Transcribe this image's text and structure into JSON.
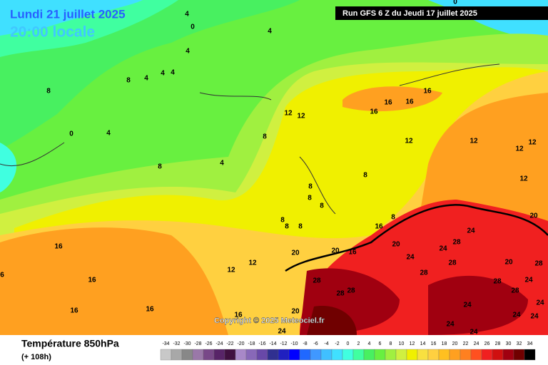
{
  "header": {
    "date": "Lundi 21 juillet 2025",
    "time": "20:00 locale",
    "run": "Run GFS 6 Z du Jeudi 17 juillet 2025"
  },
  "map": {
    "copyright": "Copyright © 2025 Meteociel.fr",
    "contour_labels": [
      4,
      0,
      0,
      4,
      4,
      8,
      4,
      4,
      4,
      8,
      0,
      4,
      12,
      12,
      16,
      16,
      16,
      16,
      8,
      12,
      12,
      12,
      12,
      8,
      4,
      8,
      8,
      12,
      8,
      8,
      20,
      8,
      8,
      8,
      16,
      8,
      24,
      16,
      20,
      20,
      16,
      20,
      28,
      24,
      24,
      20,
      28,
      16,
      12,
      12,
      28,
      28,
      28,
      24,
      28,
      28,
      28,
      28,
      24,
      16,
      16,
      24,
      16,
      20,
      24,
      24,
      24,
      24,
      24,
      6
    ]
  },
  "footer": {
    "title": "Température 850hPa",
    "lead": "(+ 108h)",
    "scale": {
      "labels": [
        -34,
        -32,
        -30,
        -28,
        -26,
        -24,
        -22,
        -20,
        -18,
        -16,
        -14,
        -12,
        -10,
        -8,
        -6,
        -4,
        -2,
        0,
        2,
        4,
        6,
        8,
        10,
        12,
        14,
        16,
        18,
        20,
        22,
        24,
        26,
        28,
        30,
        32,
        34
      ],
      "colors": [
        "#c8c8c8",
        "#a8a8a8",
        "#888888",
        "#9a78a8",
        "#784888",
        "#582468",
        "#401040",
        "#a888c8",
        "#8868b8",
        "#6848a8",
        "#303090",
        "#2020c0",
        "#0000ff",
        "#2068ff",
        "#4098ff",
        "#40c0ff",
        "#40e0ff",
        "#40ffe0",
        "#40ffa0",
        "#48f060",
        "#68f040",
        "#a0f040",
        "#d0f040",
        "#f0f000",
        "#f8e040",
        "#ffd040",
        "#ffc020",
        "#ffa020",
        "#ff8020",
        "#ff5020",
        "#f02020",
        "#d01010",
        "#a00010",
        "#700000",
        "#000000"
      ]
    }
  }
}
